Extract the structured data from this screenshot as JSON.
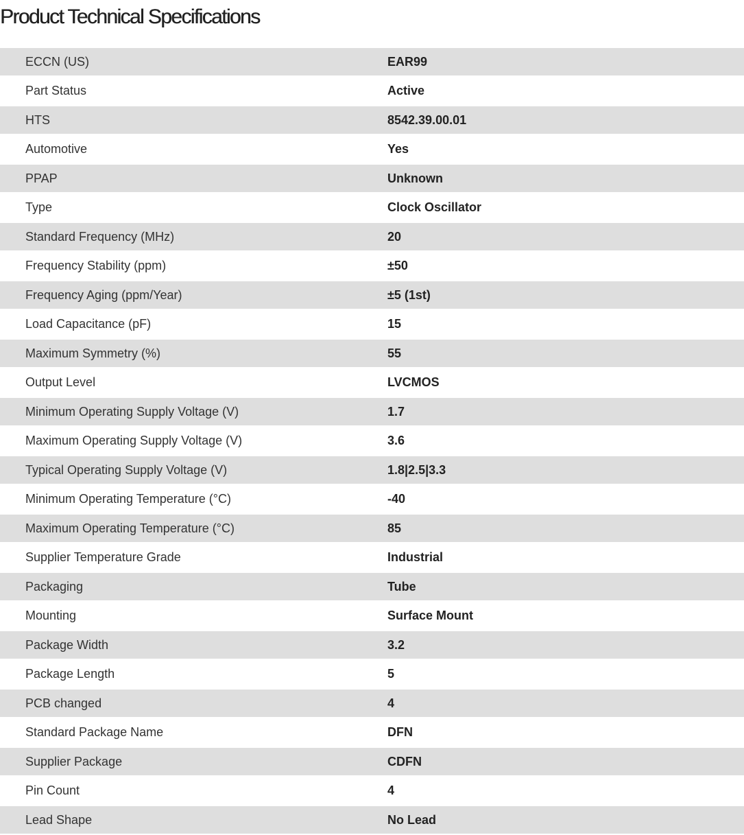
{
  "title": "Product Technical Specifications",
  "specs": [
    {
      "label": "ECCN (US)",
      "value": "EAR99"
    },
    {
      "label": "Part Status",
      "value": "Active"
    },
    {
      "label": "HTS",
      "value": "8542.39.00.01"
    },
    {
      "label": "Automotive",
      "value": "Yes"
    },
    {
      "label": "PPAP",
      "value": "Unknown"
    },
    {
      "label": "Type",
      "value": "Clock Oscillator"
    },
    {
      "label": "Standard Frequency (MHz)",
      "value": "20"
    },
    {
      "label": "Frequency Stability (ppm)",
      "value": "±50"
    },
    {
      "label": "Frequency Aging (ppm/Year)",
      "value": "±5 (1st)"
    },
    {
      "label": "Load Capacitance (pF)",
      "value": "15"
    },
    {
      "label": "Maximum Symmetry (%)",
      "value": "55"
    },
    {
      "label": "Output Level",
      "value": "LVCMOS"
    },
    {
      "label": "Minimum Operating Supply Voltage (V)",
      "value": "1.7"
    },
    {
      "label": "Maximum Operating Supply Voltage (V)",
      "value": "3.6"
    },
    {
      "label": "Typical Operating Supply Voltage (V)",
      "value": "1.8|2.5|3.3"
    },
    {
      "label": "Minimum Operating Temperature (°C)",
      "value": "-40"
    },
    {
      "label": "Maximum Operating Temperature (°C)",
      "value": "85"
    },
    {
      "label": "Supplier Temperature Grade",
      "value": "Industrial"
    },
    {
      "label": "Packaging",
      "value": "Tube"
    },
    {
      "label": "Mounting",
      "value": "Surface Mount"
    },
    {
      "label": "Package Width",
      "value": "3.2"
    },
    {
      "label": "Package Length",
      "value": "5"
    },
    {
      "label": "PCB changed",
      "value": "4"
    },
    {
      "label": "Standard Package Name",
      "value": "DFN"
    },
    {
      "label": "Supplier Package",
      "value": "CDFN"
    },
    {
      "label": "Pin Count",
      "value": "4"
    },
    {
      "label": "Lead Shape",
      "value": "No Lead"
    }
  ]
}
